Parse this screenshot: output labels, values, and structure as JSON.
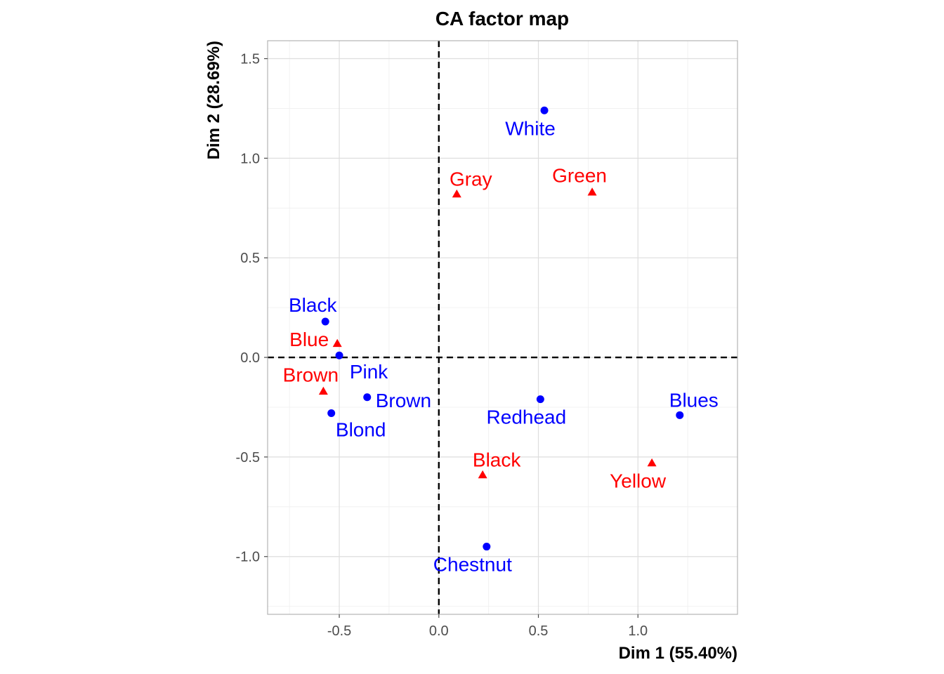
{
  "chart_data": {
    "type": "scatter",
    "title": "CA factor map",
    "xlabel": "Dim 1 (55.40%)",
    "ylabel": "Dim 2 (28.69%)",
    "xlim": [
      -0.86,
      1.5
    ],
    "ylim": [
      -1.29,
      1.59
    ],
    "x_ticks": [
      -0.5,
      0.0,
      0.5,
      1.0
    ],
    "x_tick_labels": [
      "-0.5",
      "0.0",
      "0.5",
      "1.0"
    ],
    "y_ticks": [
      -1.0,
      -0.5,
      0.0,
      0.5,
      1.0,
      1.5
    ],
    "y_tick_labels": [
      "-1.0",
      "-0.5",
      "0.0",
      "0.5",
      "1.0",
      "1.5"
    ],
    "grid": true,
    "reference_lines": {
      "x": 0,
      "y": 0,
      "style": "dashed"
    },
    "series": [
      {
        "color": "#0000ff",
        "marker": "circle",
        "points": [
          {
            "label": "White",
            "x": 0.53,
            "y": 1.24,
            "label_pos": "below-left"
          },
          {
            "label": "Black",
            "x": -0.57,
            "y": 0.18,
            "label_pos": "above-left"
          },
          {
            "label": "Pink",
            "x": -0.5,
            "y": 0.01,
            "label_pos": "below-right"
          },
          {
            "label": "Brown",
            "x": -0.36,
            "y": -0.2,
            "label_pos": "right"
          },
          {
            "label": "Blond",
            "x": -0.54,
            "y": -0.28,
            "label_pos": "below-right"
          },
          {
            "label": "Redhead",
            "x": 0.51,
            "y": -0.21,
            "label_pos": "below-left"
          },
          {
            "label": "Blues",
            "x": 1.21,
            "y": -0.29,
            "label_pos": "above-right"
          },
          {
            "label": "Chestnut",
            "x": 0.24,
            "y": -0.95,
            "label_pos": "below-left"
          }
        ]
      },
      {
        "color": "#ff0000",
        "marker": "triangle",
        "points": [
          {
            "label": "Gray",
            "x": 0.09,
            "y": 0.82,
            "label_pos": "above-right"
          },
          {
            "label": "Green",
            "x": 0.77,
            "y": 0.83,
            "label_pos": "above-left"
          },
          {
            "label": "Blue",
            "x": -0.51,
            "y": 0.07,
            "label_pos": "left"
          },
          {
            "label": "Brown",
            "x": -0.58,
            "y": -0.17,
            "label_pos": "above-left"
          },
          {
            "label": "Black",
            "x": 0.22,
            "y": -0.59,
            "label_pos": "above-right"
          },
          {
            "label": "Yellow",
            "x": 1.07,
            "y": -0.53,
            "label_pos": "below-left"
          }
        ]
      }
    ]
  }
}
